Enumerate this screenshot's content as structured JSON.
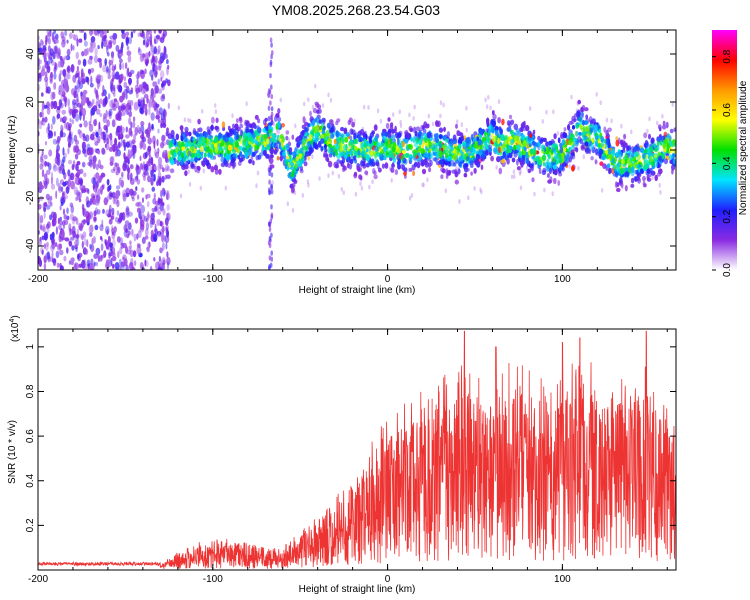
{
  "title": "YM08.2025.268.23.54.G03",
  "chart_data": [
    {
      "type": "heatmap",
      "name": "spectrogram",
      "xlabel": "Height of straight line (km)",
      "ylabel": "Frequency (Hz)",
      "xlim": [
        -200,
        165
      ],
      "ylim": [
        -50,
        50
      ],
      "xticks": [
        -200,
        -100,
        0,
        100
      ],
      "yticks": [
        -40,
        -20,
        0,
        20,
        40
      ],
      "colorbar": {
        "label": "Normalized spectral amplitude",
        "range": [
          0.0,
          0.9
        ],
        "ticks": [
          0.0,
          0.2,
          0.4,
          0.6,
          0.8
        ],
        "colors": [
          "#ffffff",
          "#8a2be2",
          "#1f1fff",
          "#00e5ff",
          "#00e000",
          "#ffff00",
          "#ff9900",
          "#ff0000",
          "#ff00ff"
        ]
      },
      "ridge": {
        "x": [
          -125,
          -110,
          -100,
          -90,
          -80,
          -70,
          -62,
          -55,
          -45,
          -40,
          -30,
          -20,
          -10,
          0,
          10,
          20,
          30,
          40,
          50,
          55,
          60,
          65,
          70,
          80,
          90,
          100,
          105,
          110,
          115,
          120,
          130,
          140,
          150,
          160,
          165
        ],
        "y": [
          -1,
          1,
          2,
          1,
          3,
          4,
          7,
          -8,
          5,
          8,
          2,
          1,
          0,
          1,
          -1,
          2,
          1,
          -2,
          0,
          3,
          6,
          2,
          4,
          1,
          -3,
          -2,
          3,
          10,
          6,
          5,
          -5,
          -6,
          -3,
          2,
          0
        ]
      },
      "scatter_region_x": [
        -200,
        -125
      ],
      "peak_amplitude": 0.9
    },
    {
      "type": "line",
      "name": "snr",
      "xlabel": "Height of straight line (km)",
      "ylabel": "SNR (10 * v/v)",
      "yscale_label": "(x10",
      "yscale_exp": "4",
      "xlim": [
        -200,
        165
      ],
      "ylim": [
        0,
        1.08
      ],
      "xticks": [
        -200,
        -100,
        0,
        100
      ],
      "yticks": [
        0.2,
        0.4,
        0.6,
        0.8,
        1
      ],
      "color": "#ee3333",
      "envelope": {
        "x": [
          -200,
          -130,
          -120,
          -110,
          -100,
          -90,
          -80,
          -70,
          -62,
          -55,
          -45,
          -35,
          -25,
          -15,
          -5,
          5,
          15,
          25,
          35,
          45,
          55,
          65,
          75,
          85,
          95,
          105,
          115,
          125,
          135,
          145,
          155,
          165
        ],
        "y": [
          0.03,
          0.03,
          0.08,
          0.13,
          0.13,
          0.14,
          0.13,
          0.11,
          0.09,
          0.13,
          0.2,
          0.27,
          0.37,
          0.48,
          0.6,
          0.7,
          0.75,
          0.78,
          0.85,
          0.92,
          0.8,
          0.88,
          0.9,
          0.85,
          0.82,
          0.88,
          0.92,
          0.85,
          0.82,
          0.9,
          0.78,
          0.65
        ]
      },
      "spikes": [
        {
          "x": 44,
          "y": 1.07
        },
        {
          "x": 110,
          "y": 1.04
        },
        {
          "x": 148,
          "y": 1.07
        },
        {
          "x": 100,
          "y": 1.02
        },
        {
          "x": 62,
          "y": 1.0
        }
      ]
    }
  ]
}
